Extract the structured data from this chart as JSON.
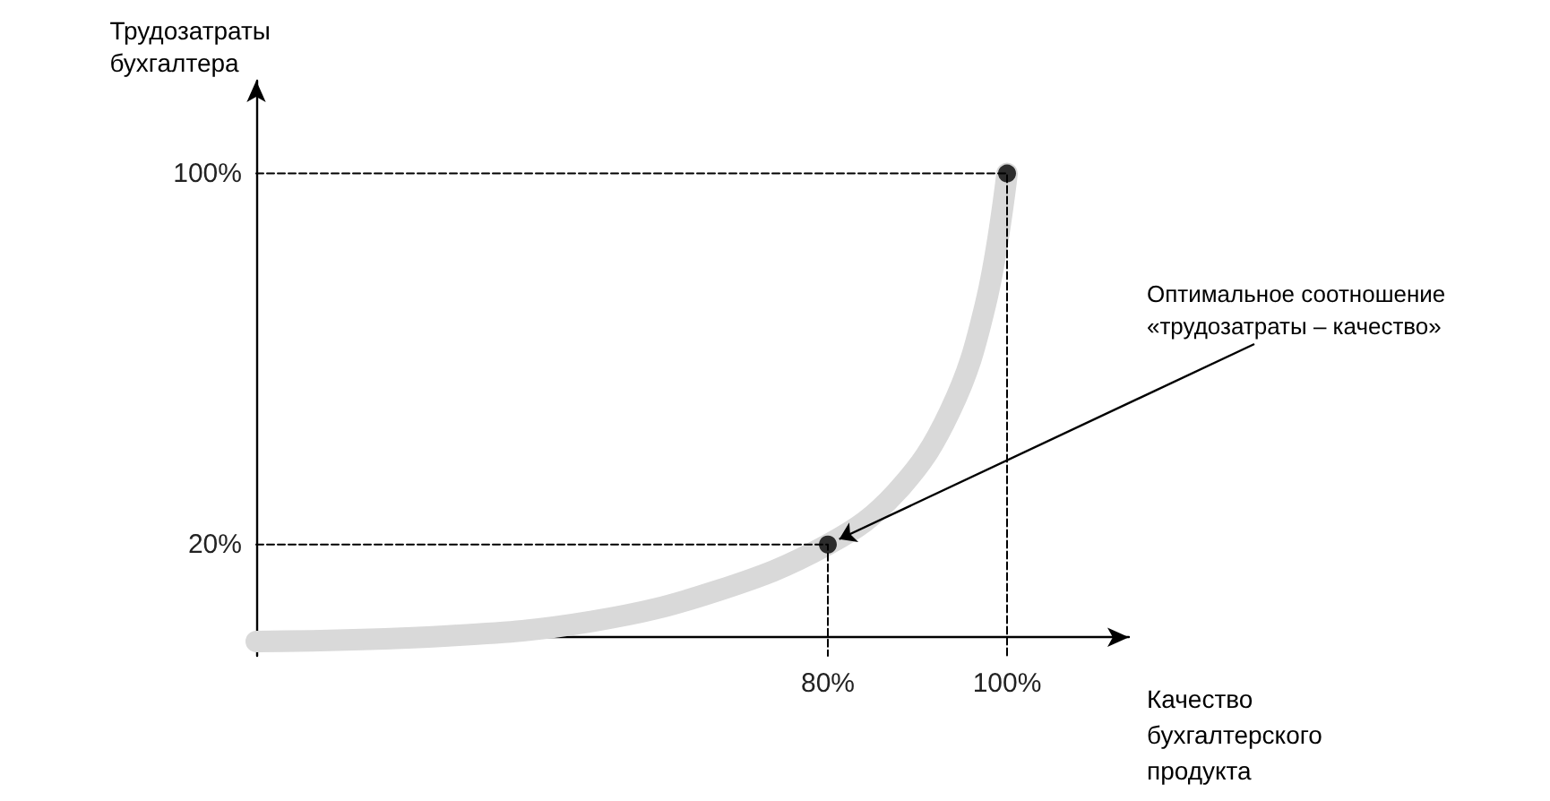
{
  "chart_data": {
    "type": "line",
    "xlabel": "Качество\nбухгалтерского\nпродукта",
    "ylabel": "Трудозатраты\nбухгалтера",
    "xlim": [
      16.2,
      113.6
    ],
    "ylim": [
      -4,
      120
    ],
    "xticks": [
      {
        "value": 80,
        "label": "80%"
      },
      {
        "value": 100,
        "label": "100%"
      }
    ],
    "yticks": [
      {
        "value": 20,
        "label": "20%"
      },
      {
        "value": 100,
        "label": "100%"
      }
    ],
    "grid": false,
    "series": [
      {
        "color": "#d9d9d9",
        "marker": "none",
        "line_style": "solid",
        "x": [
          16.2,
          37.6,
          53.6,
          67.6,
          80,
          87.6,
          93.6,
          97.6,
          100
        ],
        "values": [
          -0.9,
          0.3,
          3.4,
          10,
          20,
          31.2,
          48.6,
          71.8,
          100
        ]
      },
      {
        "type": "line",
        "color": "#000000",
        "marker": "none",
        "line_style": "dashed",
        "x": [
          16.2,
          80,
          80
        ],
        "values": [
          20,
          20,
          -4
        ]
      },
      {
        "type": "line",
        "color": "#000000",
        "marker": "none",
        "line_style": "dashed",
        "x": [
          16.2,
          100,
          100
        ],
        "values": [
          100,
          100,
          -4
        ]
      },
      {
        "type": "scatter",
        "color": "#000000",
        "marker": "circle",
        "x": [
          80,
          100
        ],
        "values": [
          20,
          100
        ]
      }
    ],
    "annotations": [
      {
        "text": "Оптимальное соотношение\n«трудозатраты – качество»",
        "x": 80,
        "y": 20
      }
    ]
  }
}
